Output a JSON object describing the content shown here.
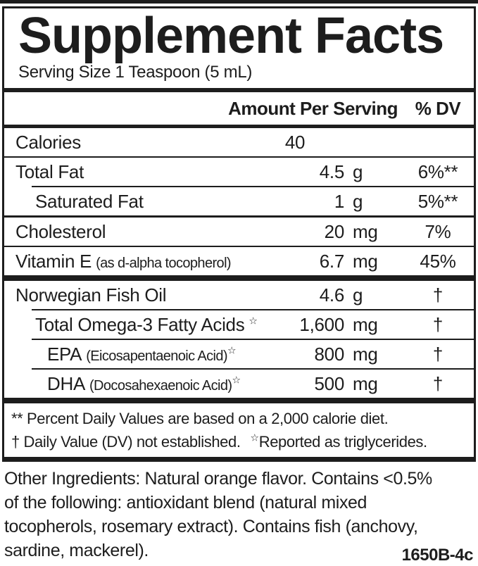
{
  "label": {
    "title": "Supplement Facts",
    "serving_size": "Serving Size 1 Teaspoon (5 mL)",
    "columns": {
      "amount": "Amount Per Serving",
      "dv": "% DV"
    },
    "rows": [
      {
        "label": "Calories",
        "amount": "40",
        "unit": "",
        "dv": ""
      },
      {
        "label": "Total Fat",
        "amount": "4.5",
        "unit": "g",
        "dv": "6%**"
      },
      {
        "label": "Saturated Fat",
        "amount": "1",
        "unit": "g",
        "dv": "5%**"
      },
      {
        "label": "Cholesterol",
        "amount": "20",
        "unit": "mg",
        "dv": "7%"
      },
      {
        "label": "Vitamin E",
        "note": "(as d-alpha tocopherol)",
        "amount": "6.7",
        "unit": "mg",
        "dv": "45%"
      },
      {
        "label": "Norwegian Fish Oil",
        "amount": "4.6",
        "unit": "g",
        "dv": "†"
      },
      {
        "label": "Total Omega-3 Fatty Acids",
        "mark": "☆",
        "amount": "1,600",
        "unit": "mg",
        "dv": "†"
      },
      {
        "label": "EPA",
        "note": "(Eicosapentaenoic Acid)",
        "mark": "☆",
        "amount": "800",
        "unit": "mg",
        "dv": "†"
      },
      {
        "label": "DHA",
        "note": "(Docosahexaenoic Acid)",
        "mark": "☆",
        "amount": "500",
        "unit": "mg",
        "dv": "†"
      }
    ],
    "footnotes": {
      "line1": "** Percent Daily Values are based on a 2,000 calorie diet.",
      "line2_part1": "† Daily Value (DV) not established.",
      "line2_mark": "☆",
      "line2_part2": "Reported as triglycerides."
    },
    "other_ingredients": {
      "lines": [
        "Other Ingredients: Natural orange flavor. Contains <0.5%",
        "of the following: antioxidant blend (natural mixed",
        "tocopherols, rosemary extract). Contains fish (anchovy,",
        "sardine, mackerel)."
      ]
    },
    "product_code": "1650B-4c",
    "colors": {
      "text": "#1d1d1d",
      "background": "#ffffff",
      "rule": "#1d1d1d"
    }
  }
}
